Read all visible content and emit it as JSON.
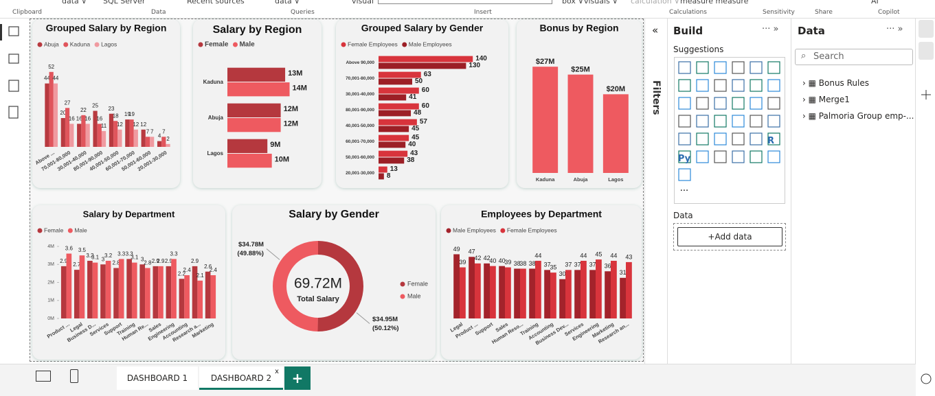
{
  "ribbon": {
    "items": [
      "data ∨",
      "SQL Server",
      "Recent sources",
      "data ∨",
      "visual",
      "box ∨",
      "visuals ∨",
      "calculation ∨",
      "measure measure",
      "AI"
    ],
    "groups": [
      "Clipboard",
      "Data",
      "Queries",
      "Insert",
      "Calculations",
      "Sensitivity",
      "Share",
      "Copilot"
    ]
  },
  "chart_data": [
    {
      "type": "column",
      "title": "Grouped Salary by Region",
      "legend": "top-left",
      "categories": [
        "Above ...",
        "70,001-80,000",
        "30,001-40,000",
        "80,001-90,000",
        "40,001-50,000",
        "60,001-70,000",
        "50,001-60,000",
        "20,001-30,000"
      ],
      "series": [
        {
          "name": "Abuja",
          "color": "#b83a40",
          "values": [
            44,
            20,
            16,
            25,
            23,
            19,
            12,
            4
          ]
        },
        {
          "name": "Kaduna",
          "color": "#e0555c",
          "values": [
            52,
            27,
            22,
            16,
            18,
            19,
            7,
            7
          ]
        },
        {
          "name": "Lagos",
          "color": "#f09aa0",
          "values": [
            44,
            16,
            16,
            11,
            12,
            12,
            7,
            2
          ]
        }
      ],
      "ylim": [
        0,
        60
      ]
    },
    {
      "type": "bar",
      "title": "Salary by Region",
      "legend": "top-left",
      "categories": [
        "Kaduna",
        "Abuja",
        "Lagos"
      ],
      "series": [
        {
          "name": "Female",
          "color": "#b5383e",
          "values": [
            13,
            12,
            9
          ],
          "value_labels": [
            "13M",
            "12M",
            "9M"
          ]
        },
        {
          "name": "Male",
          "color": "#ee5a60",
          "values": [
            14,
            12,
            10
          ],
          "value_labels": [
            "14M",
            "12M",
            "10M"
          ]
        }
      ],
      "xlim": [
        0,
        15
      ]
    },
    {
      "type": "bar",
      "title": "Grouped Salary by Gender",
      "legend": "top-left",
      "categories": [
        "Above 90,000",
        "70,001-80,000",
        "30,001-40,000",
        "80,001-90,000",
        "40,001-50,000",
        "60,001-70,000",
        "50,001-60,000",
        "20,001-30,000"
      ],
      "series": [
        {
          "name": "Female Employees",
          "color": "#d8343c",
          "values": [
            140,
            63,
            60,
            60,
            57,
            45,
            43,
            13
          ]
        },
        {
          "name": "Male Employees",
          "color": "#9c1f26",
          "values": [
            130,
            50,
            41,
            48,
            45,
            40,
            38,
            8
          ]
        }
      ],
      "xlim": [
        0,
        150
      ]
    },
    {
      "type": "column",
      "title": "Bonus by Region",
      "categories": [
        "Kaduna",
        "Abuja",
        "Lagos"
      ],
      "values": [
        27,
        25,
        20
      ],
      "value_labels": [
        "$27M",
        "$25M",
        "$20M"
      ],
      "color": "#ee5a60",
      "ylim": [
        0,
        30
      ]
    },
    {
      "type": "column",
      "title": "Salary by Department",
      "legend": "top-left",
      "categories": [
        "Product ...",
        "Legal",
        "Business D...",
        "Services",
        "Support",
        "Training",
        "Human Re...",
        "Sales",
        "Engineering",
        "Accounting",
        "Research a...",
        "Marketing"
      ],
      "series": [
        {
          "name": "Female",
          "color": "#b5383e",
          "values": [
            2.9,
            2.7,
            3.2,
            3.0,
            2.8,
            3.3,
            3.0,
            2.9,
            2.9,
            2.2,
            2.9,
            2.6
          ]
        },
        {
          "name": "Male",
          "color": "#ee5a60",
          "values": [
            3.6,
            3.5,
            3.1,
            3.2,
            3.3,
            3.1,
            2.8,
            2.9,
            3.3,
            2.4,
            2.1,
            2.4
          ]
        }
      ],
      "ylim": [
        0,
        4
      ],
      "yticks": [
        {
          "value": 0,
          "label": "0M"
        },
        {
          "value": 1,
          "label": "1M"
        },
        {
          "value": 2,
          "label": "2M"
        },
        {
          "value": 3,
          "label": "3M"
        },
        {
          "value": 4,
          "label": "4M"
        }
      ]
    },
    {
      "type": "donut",
      "title": "Salary by Gender",
      "legend": "right",
      "categories": [
        "Female",
        "Male"
      ],
      "values": [
        34.95,
        34.78
      ],
      "value_labels": [
        "$34.95M",
        "$34.78M"
      ],
      "percent_labels": [
        "(50.12%)",
        "(49.88%)"
      ],
      "colors": [
        "#b5383e",
        "#ee5a60"
      ],
      "center_value": "69.72M",
      "center_label": "Total Salary"
    },
    {
      "type": "column",
      "title": "Employees by Department",
      "legend": "top-left",
      "categories": [
        "Legal",
        "Product ...",
        "Support",
        "Sales",
        "Human Reso...",
        "Training",
        "Accounting",
        "Business Dev...",
        "Services",
        "Engineering",
        "Marketing",
        "Research an..."
      ],
      "series": [
        {
          "name": "Male Employees",
          "color": "#a3232b",
          "values": [
            49,
            47,
            42,
            40,
            38,
            38,
            37,
            30,
            37,
            37,
            36,
            31
          ]
        },
        {
          "name": "Female Employees",
          "color": "#d8343c",
          "values": [
            39,
            42,
            40,
            39,
            38,
            44,
            35,
            37,
            44,
            45,
            44,
            43
          ]
        }
      ],
      "ylim": [
        0,
        55
      ]
    }
  ],
  "filters": {
    "label": "Filters"
  },
  "build": {
    "title": "Build",
    "suggestions": "Suggestions",
    "icon_texts": [
      "R",
      "Py"
    ],
    "more": "···",
    "data_label": "Data",
    "add_data": "+Add data"
  },
  "data_pane": {
    "title": "Data",
    "search": "Search",
    "tables": [
      "Bonus Rules",
      "Merge1",
      "Palmoria Group emp-..."
    ]
  },
  "tabs": {
    "pages": [
      "DASHBOARD 1",
      "DASHBOARD 2"
    ],
    "close": "x",
    "add": "+"
  }
}
